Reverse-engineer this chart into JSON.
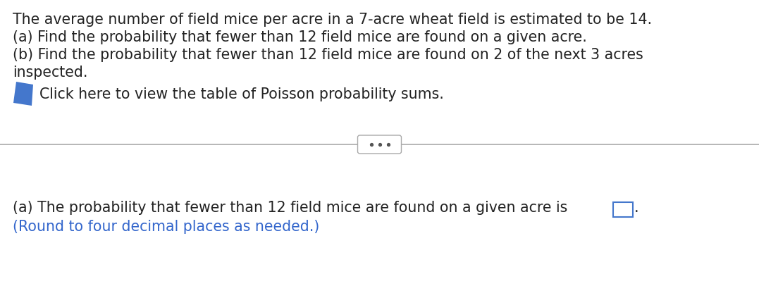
{
  "bg_color": "#ffffff",
  "text_color_black": "#222222",
  "text_color_blue": "#3366cc",
  "line1": "The average number of field mice per acre in a 7-acre wheat field is estimated to be 14.",
  "line2": "(a) Find the probability that fewer than 12 field mice are found on a given acre.",
  "line3": "(b) Find the probability that fewer than 12 field mice are found on 2 of the next 3 acres",
  "line4": "inspected.",
  "click_text": "Click here to view the table of Poisson probability sums.",
  "answer_line1": "(a) The probability that fewer than 12 field mice are found on a given acre is",
  "answer_line2": "(Round to four decimal places as needed.)",
  "divider_color": "#aaaaaa",
  "icon_blue_dark": "#4477cc",
  "icon_blue_mid": "#5588dd",
  "icon_white": "#ffffff",
  "dots_color": "#555555",
  "box_border_color": "#4477cc",
  "font_size_main": 14.8,
  "font_size_answer": 14.8
}
